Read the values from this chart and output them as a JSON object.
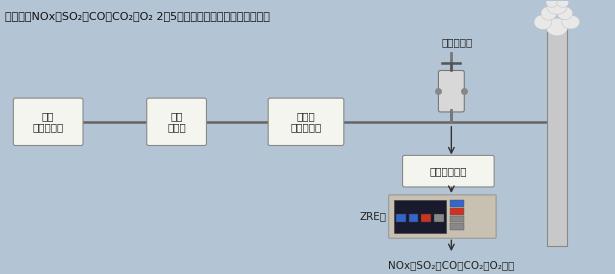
{
  "bg_color": "#b3c5d5",
  "title_text": "可同时对NOx、SO₂、CO、CO₂、O₂ 2的5种组分气体浓度进行连续测量。",
  "box1_label": "锅炉\n燃料：重油",
  "box2_label": "空气\n加热器",
  "box3_label": "集尘机\n袋式除尘器",
  "box4_label": "气体采样器件",
  "sampler_label": "气体采样器",
  "zre_label": "ZRE型",
  "bottom_label": "NOx、SO₂、CO、CO₂、O₂测量",
  "box_facecolor": "#f5f5f0",
  "box_edgecolor": "#888888",
  "arrow_color": "#333333",
  "line_color": "#555555",
  "pipe_color": "#666666",
  "chimney_fill": "#c8c8c8",
  "chimney_edge": "#888888",
  "smoke_fill": "#e8e8e8",
  "zre_body": "#c8c0b0",
  "zre_screen": "#1a1a2e",
  "zre_blue": "#2255bb",
  "zre_red": "#cc3322"
}
